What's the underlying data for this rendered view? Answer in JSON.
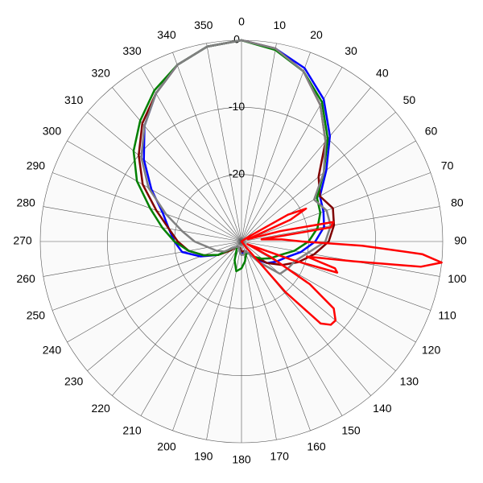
{
  "chart_data": {
    "type": "polar",
    "rlim": [
      -30,
      0
    ],
    "rticks": [
      -20,
      -10,
      0
    ],
    "thetaticks": [
      0,
      10,
      20,
      30,
      40,
      50,
      60,
      70,
      80,
      90,
      100,
      110,
      120,
      130,
      140,
      150,
      160,
      170,
      180,
      190,
      200,
      210,
      220,
      230,
      240,
      250,
      260,
      270,
      280,
      290,
      300,
      310,
      320,
      330,
      340,
      350
    ],
    "grid": true,
    "series": [
      {
        "color": "#0000ff",
        "theta": [
          0,
          10,
          20,
          30,
          40,
          50,
          60,
          70,
          80,
          90,
          100,
          110,
          120,
          130,
          140,
          150,
          160,
          170,
          180,
          190,
          200,
          210,
          220,
          230,
          240,
          250,
          260,
          270,
          280,
          290,
          300,
          310,
          320,
          330,
          340,
          350
        ],
        "values": [
          0,
          -0.8,
          -2.5,
          -5.5,
          -9.5,
          -13.5,
          -16.5,
          -17,
          -17.5,
          -19,
          -21,
          -23,
          -24,
          -25,
          -26.5,
          -28,
          -28.5,
          -28.5,
          -28,
          -28.5,
          -29,
          -29,
          -29,
          -28.5,
          -26,
          -23.5,
          -21,
          -20,
          -19,
          -17.5,
          -14.5,
          -11,
          -7.5,
          -4.5,
          -2,
          -0.5
        ]
      },
      {
        "color": "#800000",
        "theta": [
          0,
          10,
          20,
          30,
          40,
          50,
          60,
          70,
          80,
          90,
          100,
          110,
          120,
          130,
          140,
          150,
          160,
          170,
          180,
          190,
          200,
          210,
          220,
          230,
          240,
          250,
          260,
          270,
          280,
          290,
          300,
          310,
          320,
          330,
          340,
          350
        ],
        "values": [
          0,
          -0.8,
          -3,
          -6.5,
          -10.5,
          -15,
          -16.5,
          -15.5,
          -16,
          -17,
          -19,
          -21,
          -23,
          -25,
          -27,
          -28,
          -28.5,
          -28.5,
          -28.5,
          -29,
          -29,
          -29,
          -29,
          -28,
          -26,
          -24,
          -22,
          -20.5,
          -19,
          -16.5,
          -13,
          -10,
          -7,
          -4.5,
          -2,
          -0.5
        ]
      },
      {
        "color": "#008000",
        "theta": [
          0,
          10,
          20,
          30,
          40,
          50,
          60,
          70,
          80,
          90,
          100,
          110,
          120,
          130,
          140,
          150,
          160,
          170,
          180,
          190,
          200,
          210,
          220,
          230,
          240,
          250,
          260,
          270,
          280,
          290,
          300,
          310,
          320,
          330,
          340,
          350
        ],
        "values": [
          0,
          -1,
          -3,
          -6,
          -10,
          -14,
          -17,
          -17.5,
          -18.5,
          -20,
          -22,
          -24,
          -25,
          -26,
          -27,
          -28,
          -28,
          -27,
          -26,
          -25.5,
          -27,
          -28.5,
          -29,
          -28.5,
          -26,
          -24,
          -22,
          -20,
          -18,
          -15.5,
          -12,
          -9,
          -6.5,
          -4,
          -2,
          -0.5
        ]
      },
      {
        "color": "#808080",
        "theta": [
          0,
          10,
          20,
          30,
          40,
          50,
          60,
          70,
          80,
          90,
          100,
          110,
          120,
          130,
          140,
          150,
          160,
          170,
          180,
          190,
          200,
          210,
          220,
          230,
          240,
          250,
          260,
          270,
          280,
          290,
          300,
          310,
          320,
          330,
          340,
          350
        ],
        "values": [
          0,
          -0.8,
          -3,
          -6.5,
          -10.5,
          -14,
          -17.5,
          -16.5,
          -16.5,
          -17.5,
          -20,
          -21.5,
          -22,
          -22.5,
          -26,
          -28,
          -28.5,
          -28,
          -28,
          -28.5,
          -29,
          -29,
          -29,
          -28.5,
          -27,
          -26,
          -25,
          -23,
          -21,
          -18,
          -14,
          -10.5,
          -7.5,
          -4.5,
          -2,
          -0.5
        ]
      },
      {
        "color": "#ff0000",
        "theta": [
          0,
          40,
          55,
          60,
          63,
          66,
          70,
          75,
          78,
          81,
          84,
          87,
          90,
          92,
          94,
          96,
          98,
          100,
          103,
          106,
          108,
          110,
          114,
          118,
          122,
          126,
          130,
          133,
          136,
          139,
          142,
          150,
          180,
          270,
          330
        ],
        "values": [
          -30,
          -30,
          -29,
          -22,
          -19.2,
          -22,
          -29,
          -24,
          -16,
          -16.5,
          -27,
          -24,
          -21,
          -12,
          -3,
          0,
          -3,
          -13,
          -20,
          -15.5,
          -15,
          -22,
          -29,
          -25,
          -18,
          -13,
          -11.7,
          -11.8,
          -13,
          -20,
          -29,
          -30,
          -30,
          -30,
          -30
        ]
      }
    ]
  }
}
